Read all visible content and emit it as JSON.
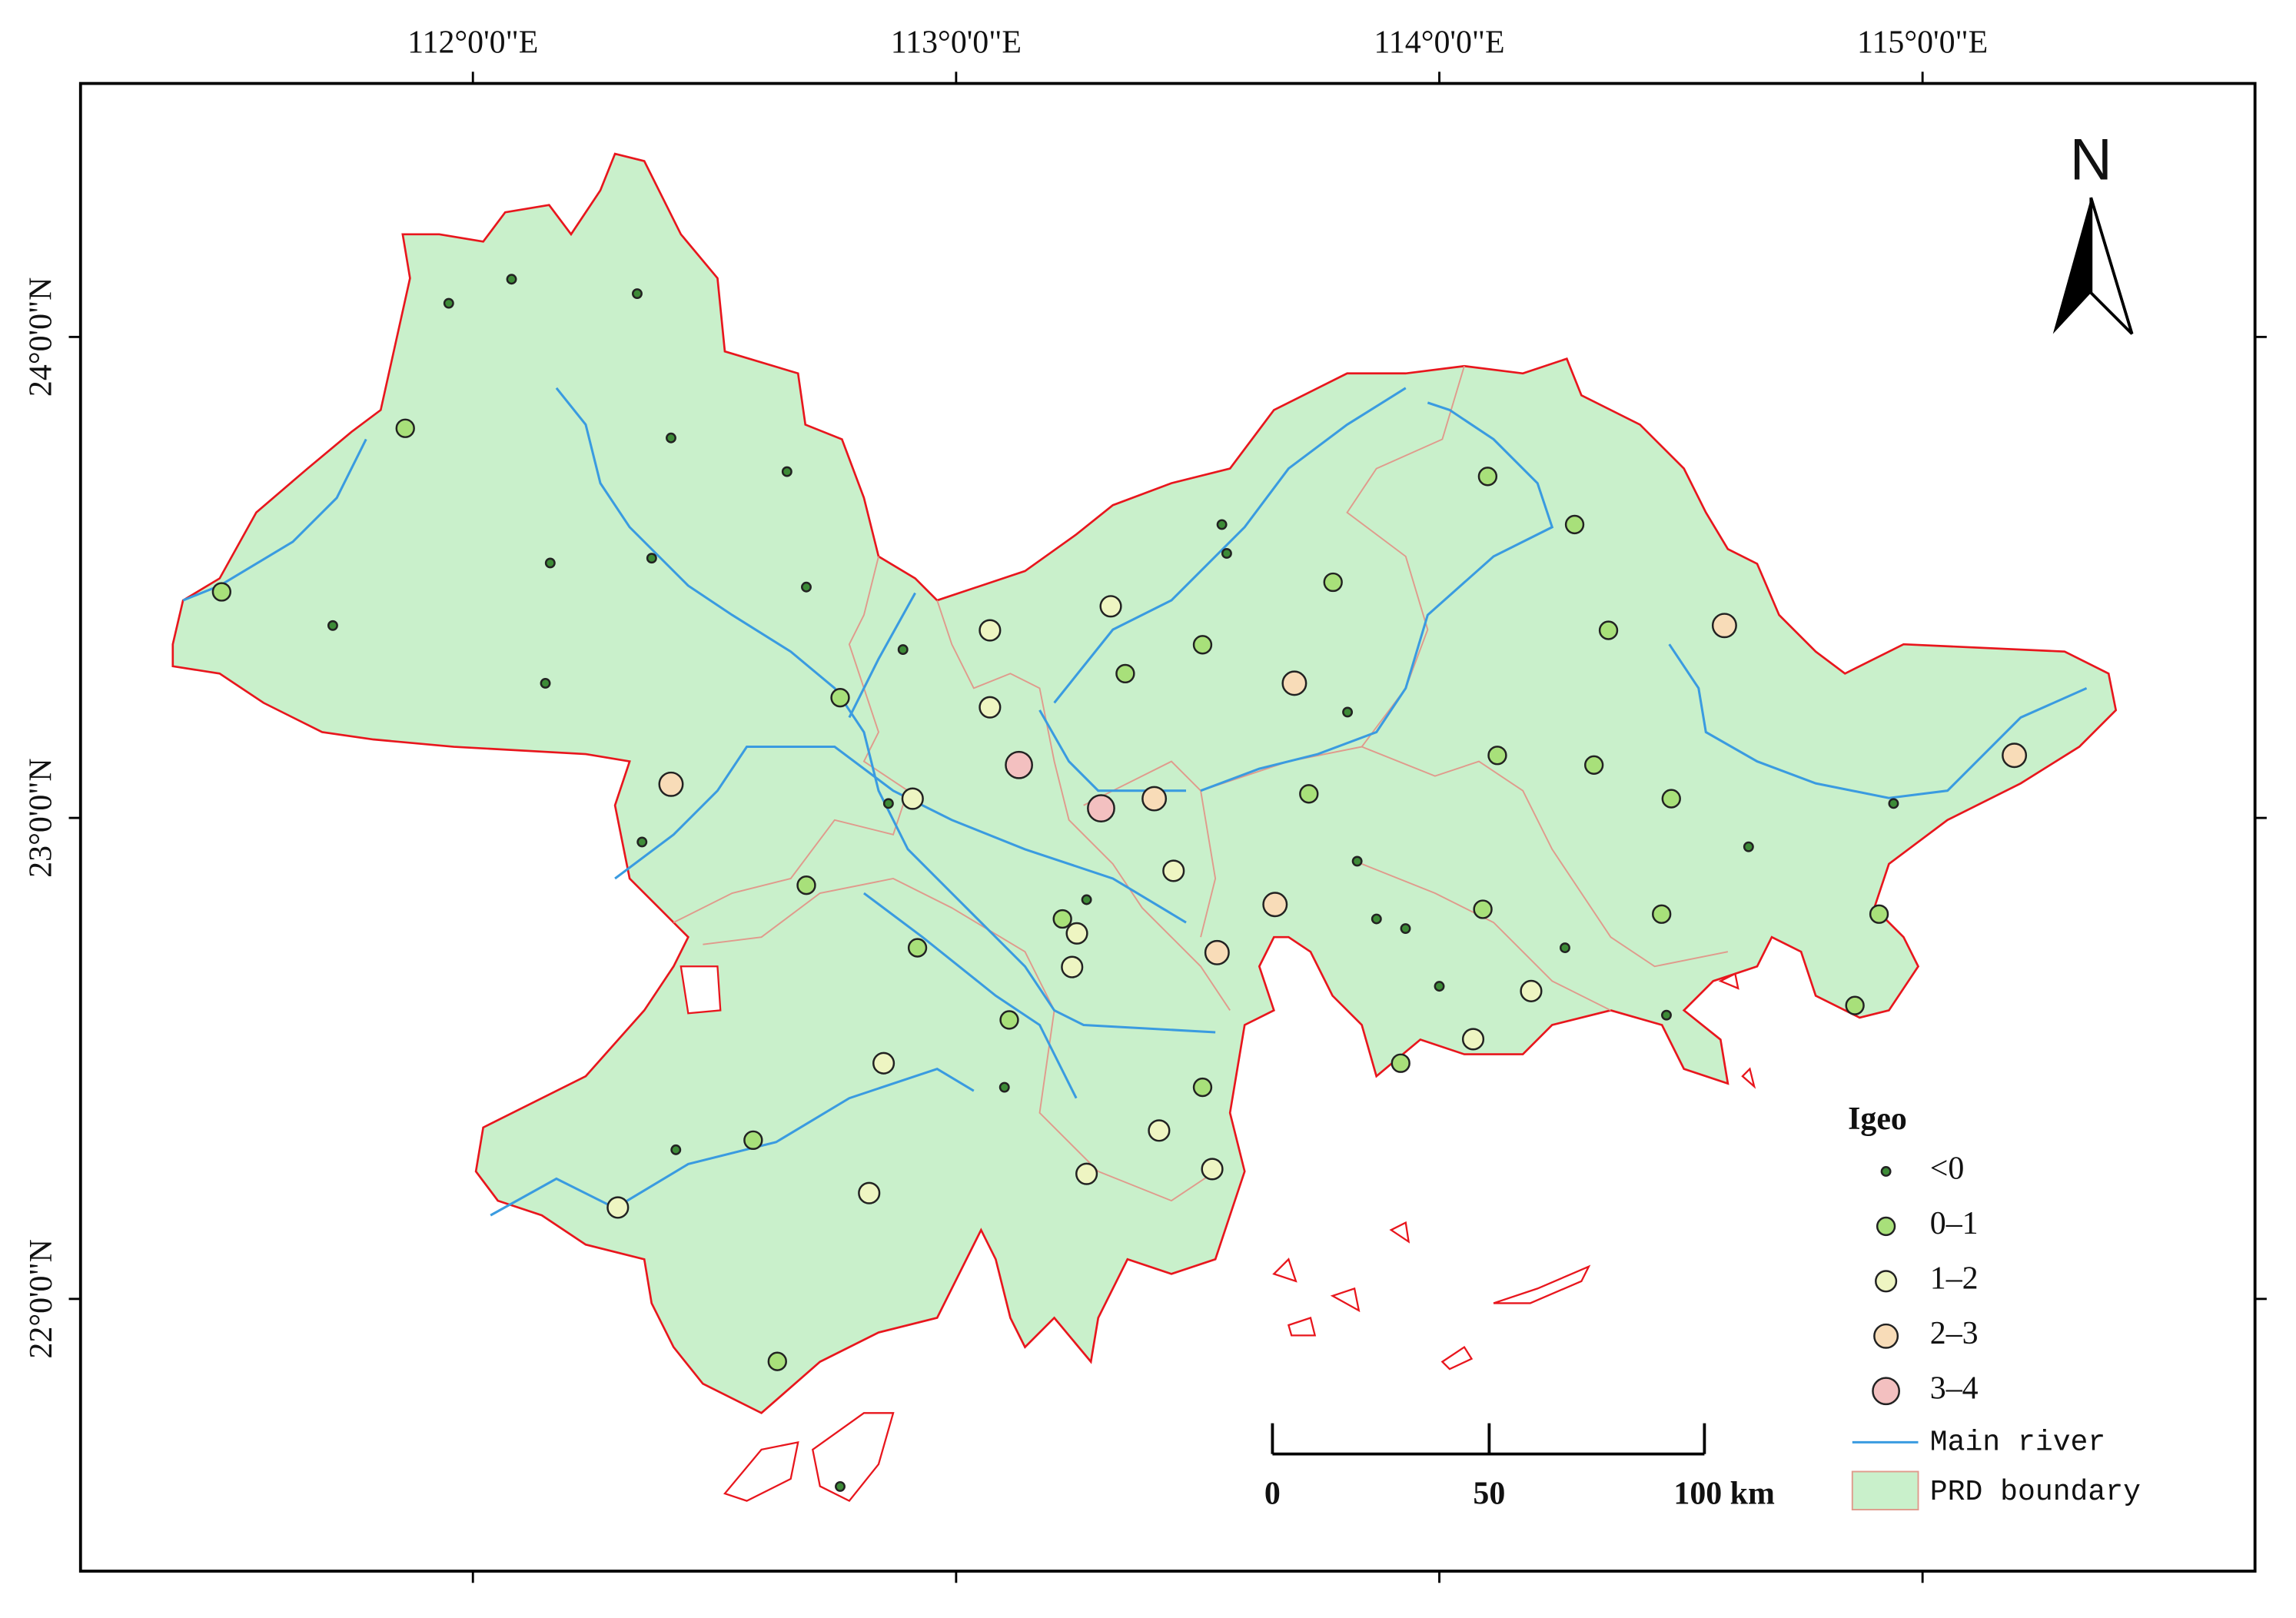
{
  "map": {
    "xlim": [
      111.188,
      115.688
    ],
    "ylim": [
      21.434,
      24.527
    ],
    "xticks": [
      {
        "value": 112,
        "label": "112°0'0\"E"
      },
      {
        "value": 113,
        "label": "113°0'0\"E"
      },
      {
        "value": 114,
        "label": "114°0'0\"E"
      },
      {
        "value": 115,
        "label": "115°0'0\"E"
      }
    ],
    "yticks": [
      {
        "value": 22,
        "label": "22°0'0\"N"
      },
      {
        "value": 23,
        "label": "23°0'0\"N"
      },
      {
        "value": 24,
        "label": "24°0'0\"N"
      }
    ],
    "north": "N",
    "legend": {
      "title": "Igeo",
      "classes": [
        {
          "name": "<0",
          "color": "#3d8b37"
        },
        {
          "name": "0–1",
          "color": "#a8e07a"
        },
        {
          "name": "1–2",
          "color": "#eef5c2"
        },
        {
          "name": "2–3",
          "color": "#f8dcb8"
        },
        {
          "name": "3–4",
          "color": "#f3c0c0"
        }
      ],
      "river": "Main river",
      "boundary": "PRD boundary"
    },
    "scale_bar": [
      "0",
      "50",
      "100 km"
    ],
    "samples": [
      {
        "lon": 111.95,
        "lat": 24.07,
        "igeo": "<0"
      },
      {
        "lon": 112.08,
        "lat": 24.12,
        "igeo": "<0"
      },
      {
        "lon": 112.34,
        "lat": 24.09,
        "igeo": "<0"
      },
      {
        "lon": 111.86,
        "lat": 23.81,
        "igeo": "0–1"
      },
      {
        "lon": 112.41,
        "lat": 23.79,
        "igeo": "<0"
      },
      {
        "lon": 112.65,
        "lat": 23.72,
        "igeo": "<0"
      },
      {
        "lon": 112.16,
        "lat": 23.53,
        "igeo": "<0"
      },
      {
        "lon": 112.37,
        "lat": 23.54,
        "igeo": "<0"
      },
      {
        "lon": 111.48,
        "lat": 23.47,
        "igeo": "0–1"
      },
      {
        "lon": 111.71,
        "lat": 23.4,
        "igeo": "<0"
      },
      {
        "lon": 112.69,
        "lat": 23.48,
        "igeo": "<0"
      },
      {
        "lon": 112.15,
        "lat": 23.28,
        "igeo": "<0"
      },
      {
        "lon": 112.76,
        "lat": 23.25,
        "igeo": "0–1"
      },
      {
        "lon": 112.89,
        "lat": 23.35,
        "igeo": "<0"
      },
      {
        "lon": 112.41,
        "lat": 23.07,
        "igeo": "2–3"
      },
      {
        "lon": 112.35,
        "lat": 22.95,
        "igeo": "<0"
      },
      {
        "lon": 112.86,
        "lat": 23.03,
        "igeo": "<0"
      },
      {
        "lon": 112.91,
        "lat": 23.04,
        "igeo": "1–2"
      },
      {
        "lon": 112.69,
        "lat": 22.86,
        "igeo": "0–1"
      },
      {
        "lon": 112.92,
        "lat": 22.73,
        "igeo": "0–1"
      },
      {
        "lon": 113.07,
        "lat": 23.39,
        "igeo": "1–2"
      },
      {
        "lon": 113.07,
        "lat": 23.23,
        "igeo": "1–2"
      },
      {
        "lon": 113.13,
        "lat": 23.11,
        "igeo": "3–4"
      },
      {
        "lon": 113.3,
        "lat": 23.02,
        "igeo": "3–4"
      },
      {
        "lon": 113.32,
        "lat": 23.44,
        "igeo": "1–2"
      },
      {
        "lon": 113.35,
        "lat": 23.3,
        "igeo": "0–1"
      },
      {
        "lon": 113.41,
        "lat": 23.04,
        "igeo": "2–3"
      },
      {
        "lon": 113.55,
        "lat": 23.61,
        "igeo": "<0"
      },
      {
        "lon": 113.56,
        "lat": 23.55,
        "igeo": "<0"
      },
      {
        "lon": 113.51,
        "lat": 23.36,
        "igeo": "0–1"
      },
      {
        "lon": 113.78,
        "lat": 23.49,
        "igeo": "0–1"
      },
      {
        "lon": 113.7,
        "lat": 23.28,
        "igeo": "2–3"
      },
      {
        "lon": 113.81,
        "lat": 23.22,
        "igeo": "<0"
      },
      {
        "lon": 113.73,
        "lat": 23.05,
        "igeo": "0–1"
      },
      {
        "lon": 113.45,
        "lat": 22.89,
        "igeo": "1–2"
      },
      {
        "lon": 113.27,
        "lat": 22.83,
        "igeo": "<0"
      },
      {
        "lon": 113.22,
        "lat": 22.79,
        "igeo": "0–1"
      },
      {
        "lon": 113.25,
        "lat": 22.76,
        "igeo": "1–2"
      },
      {
        "lon": 113.24,
        "lat": 22.69,
        "igeo": "1–2"
      },
      {
        "lon": 113.54,
        "lat": 22.72,
        "igeo": "2–3"
      },
      {
        "lon": 113.66,
        "lat": 22.82,
        "igeo": "2–3"
      },
      {
        "lon": 113.83,
        "lat": 22.91,
        "igeo": "<0"
      },
      {
        "lon": 113.87,
        "lat": 22.79,
        "igeo": "<0"
      },
      {
        "lon": 113.93,
        "lat": 22.77,
        "igeo": "<0"
      },
      {
        "lon": 114.0,
        "lat": 22.65,
        "igeo": "<0"
      },
      {
        "lon": 114.1,
        "lat": 23.71,
        "igeo": "0–1"
      },
      {
        "lon": 114.28,
        "lat": 23.61,
        "igeo": "0–1"
      },
      {
        "lon": 114.35,
        "lat": 23.39,
        "igeo": "0–1"
      },
      {
        "lon": 114.59,
        "lat": 23.4,
        "igeo": "2–3"
      },
      {
        "lon": 114.12,
        "lat": 23.13,
        "igeo": "0–1"
      },
      {
        "lon": 114.32,
        "lat": 23.11,
        "igeo": "0–1"
      },
      {
        "lon": 114.48,
        "lat": 23.04,
        "igeo": "0–1"
      },
      {
        "lon": 114.64,
        "lat": 22.94,
        "igeo": "<0"
      },
      {
        "lon": 114.94,
        "lat": 23.03,
        "igeo": "<0"
      },
      {
        "lon": 115.19,
        "lat": 23.13,
        "igeo": "2–3"
      },
      {
        "lon": 114.09,
        "lat": 22.81,
        "igeo": "0–1"
      },
      {
        "lon": 114.26,
        "lat": 22.73,
        "igeo": "<0"
      },
      {
        "lon": 114.46,
        "lat": 22.8,
        "igeo": "0–1"
      },
      {
        "lon": 114.19,
        "lat": 22.64,
        "igeo": "1–2"
      },
      {
        "lon": 114.47,
        "lat": 22.59,
        "igeo": "<0"
      },
      {
        "lon": 114.07,
        "lat": 22.54,
        "igeo": "1–2"
      },
      {
        "lon": 113.92,
        "lat": 22.49,
        "igeo": "0–1"
      },
      {
        "lon": 114.91,
        "lat": 22.8,
        "igeo": "0–1"
      },
      {
        "lon": 114.86,
        "lat": 22.61,
        "igeo": "0–1"
      },
      {
        "lon": 113.11,
        "lat": 22.58,
        "igeo": "0–1"
      },
      {
        "lon": 113.1,
        "lat": 22.44,
        "igeo": "<0"
      },
      {
        "lon": 112.85,
        "lat": 22.49,
        "igeo": "1–2"
      },
      {
        "lon": 113.51,
        "lat": 22.44,
        "igeo": "0–1"
      },
      {
        "lon": 113.42,
        "lat": 22.35,
        "igeo": "1–2"
      },
      {
        "lon": 113.27,
        "lat": 22.26,
        "igeo": "1–2"
      },
      {
        "lon": 113.53,
        "lat": 22.27,
        "igeo": "1–2"
      },
      {
        "lon": 112.58,
        "lat": 22.33,
        "igeo": "0–1"
      },
      {
        "lon": 112.42,
        "lat": 22.31,
        "igeo": "<0"
      },
      {
        "lon": 112.82,
        "lat": 22.22,
        "igeo": "1–2"
      },
      {
        "lon": 112.3,
        "lat": 22.19,
        "igeo": "1–2"
      },
      {
        "lon": 112.63,
        "lat": 21.87,
        "igeo": "0–1"
      },
      {
        "lon": 112.76,
        "lat": 21.61,
        "igeo": "<0"
      }
    ]
  }
}
